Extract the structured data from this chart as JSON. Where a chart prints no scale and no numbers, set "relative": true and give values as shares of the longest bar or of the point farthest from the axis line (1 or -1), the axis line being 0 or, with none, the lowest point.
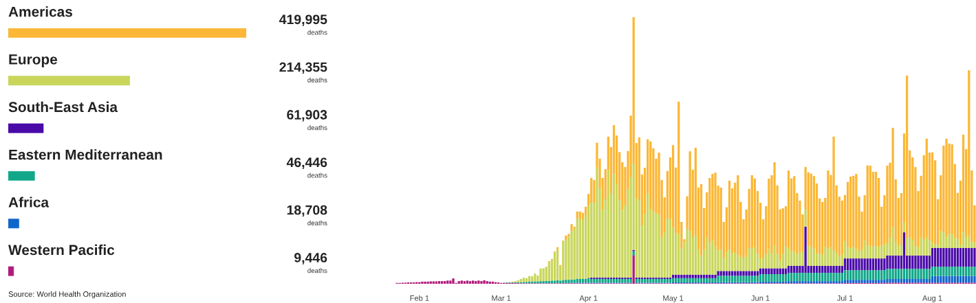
{
  "chart_data": [
    {
      "type": "bar",
      "orientation": "horizontal",
      "tick_labels": "y",
      "categories": [
        "Americas",
        "Europe",
        "South-East Asia",
        "Eastern Mediterranean",
        "Africa",
        "Western Pacific"
      ],
      "values": [
        419995,
        214355,
        61903,
        46446,
        18708,
        9446
      ],
      "colors": [
        "#fbb735",
        "#c9d65b",
        "#4a0aa8",
        "#11a889",
        "#1166cc",
        "#b01a7c"
      ],
      "value_labels": [
        "419,995\ndeaths",
        "214,355\ndeaths",
        "61,903\ndeaths",
        "46,446\ndeaths",
        "18,708\ndeaths",
        "9,446\ndeaths"
      ],
      "annotations": [
        "Source: World Health Organization"
      ]
    },
    {
      "type": "bar",
      "stacked": true,
      "relative": true,
      "tick_labels": "x",
      "categories": [
        null,
        null,
        null,
        null,
        null,
        null,
        null,
        null,
        "Feb 1",
        null,
        null,
        null,
        null,
        null,
        null,
        null,
        null,
        null,
        null,
        null,
        null,
        null,
        null,
        null,
        null,
        null,
        null,
        null,
        null,
        null,
        null,
        null,
        null,
        null,
        null,
        null,
        null,
        "Mar 1",
        null,
        null,
        null,
        null,
        null,
        null,
        null,
        null,
        null,
        null,
        null,
        null,
        null,
        null,
        null,
        null,
        null,
        null,
        null,
        null,
        null,
        null,
        null,
        null,
        null,
        null,
        null,
        null,
        null,
        null,
        "Apr 1",
        null,
        null,
        null,
        null,
        null,
        null,
        null,
        null,
        null,
        null,
        null,
        null,
        null,
        null,
        null,
        null,
        null,
        null,
        null,
        null,
        null,
        null,
        null,
        null,
        null,
        null,
        null,
        null,
        null,
        "May 1",
        null,
        null,
        null,
        null,
        null,
        null,
        null,
        null,
        null,
        null,
        null,
        null,
        null,
        null,
        null,
        null,
        null,
        null,
        null,
        null,
        null,
        null,
        null,
        null,
        null,
        null,
        null,
        null,
        null,
        null,
        "Jun 1",
        null,
        null,
        null,
        null,
        null,
        null,
        null,
        null,
        null,
        null,
        null,
        null,
        null,
        null,
        null,
        null,
        null,
        null,
        null,
        null,
        null,
        null,
        null,
        null,
        null,
        null,
        null,
        null,
        null,
        "Jul 1",
        null,
        null,
        null,
        null,
        null,
        null,
        null,
        null,
        null,
        null,
        null,
        null,
        null,
        null,
        null,
        null,
        null,
        null,
        null,
        null,
        null,
        null,
        null,
        null,
        null,
        null,
        null,
        null,
        null,
        null,
        "Aug 1",
        null,
        null,
        null,
        null,
        null,
        null,
        null,
        null,
        null,
        null,
        null,
        null,
        null,
        null,
        null
      ],
      "series": [
        {
          "color": "#b01a7c",
          "values": [
            0.003,
            0.003,
            0.004,
            0.004,
            0.005,
            0.005,
            0.005,
            0.006,
            0.006,
            0.008,
            0.008,
            0.008,
            0.009,
            0.009,
            0.009,
            0.01,
            0.01,
            0.01,
            0.012,
            0.012,
            0.02,
            0.003,
            0.01,
            0.012,
            0.01,
            0.012,
            0.01,
            0.012,
            0.01,
            0.012,
            0.01,
            0.013,
            0.01,
            0.008,
            0.008,
            0.006,
            0.005,
            0.003,
            0.003,
            0.003,
            0.003,
            0.003,
            0.003,
            0.003,
            0.002,
            0.002,
            0.002,
            0.002,
            0.002,
            0.002,
            0.002,
            0.002,
            0.002,
            0.002,
            0.002,
            0.002,
            0.002,
            0.002,
            0.002,
            0.002,
            0.002,
            0.002,
            0.002,
            0.002,
            0.002,
            0.002,
            0.002,
            0.002,
            0.002,
            0.002,
            0.002,
            0.002,
            0.002,
            0.002,
            0.002,
            0.002,
            0.002,
            0.002,
            0.002,
            0.002,
            0.002,
            0.002,
            0.002,
            0.002,
            0.106,
            0.002,
            0.002,
            0.002,
            0.002,
            0.002,
            0.002,
            0.002,
            0.002,
            0.002,
            0.002,
            0.002,
            0.002,
            0.002,
            0.002,
            0.002,
            0.002,
            0.002,
            0.002,
            0.002,
            0.002,
            0.002,
            0.002,
            0.002,
            0.002,
            0.002,
            0.002,
            0.002,
            0.002,
            0.002,
            0.002,
            0.002,
            0.002,
            0.002,
            0.002,
            0.002,
            0.002,
            0.002,
            0.002,
            0.002,
            0.002,
            0.002,
            0.002,
            0.002,
            0.002,
            0.002,
            0.002,
            0.002,
            0.002,
            0.002,
            0.002,
            0.002,
            0.002,
            0.002,
            0.002,
            0.002,
            0.002,
            0.002,
            0.002,
            0.002,
            0.002,
            0.002,
            0.002,
            0.002,
            0.002,
            0.002,
            0.002,
            0.002,
            0.002,
            0.002,
            0.002,
            0.002,
            0.002,
            0.002,
            0.002,
            0.003,
            0.003,
            0.003,
            0.003,
            0.003,
            0.003,
            0.003,
            0.003,
            0.003,
            0.003,
            0.003,
            0.003,
            0.003,
            0.003,
            0.003,
            0.004,
            0.004,
            0.004,
            0.004,
            0.004,
            0.004,
            0.004,
            0.004,
            0.004,
            0.004,
            0.004,
            0.004,
            0.004,
            0.004,
            0.004,
            0.004,
            0.004,
            0.004,
            0.004,
            0.004,
            0.004,
            0.004,
            0.004,
            0.004,
            0.004,
            0.004,
            0.004,
            0.004,
            0.004,
            0.004,
            0.004,
            0.004
          ]
        },
        {
          "color": "#1166cc",
          "values": [
            0,
            0,
            0,
            0,
            0,
            0,
            0,
            0,
            0,
            0,
            0,
            0,
            0,
            0,
            0,
            0,
            0,
            0,
            0,
            0,
            0,
            0,
            0,
            0,
            0,
            0,
            0,
            0,
            0,
            0,
            0,
            0,
            0,
            0,
            0,
            0,
            0,
            0,
            0,
            0,
            0,
            0,
            0,
            0,
            0,
            0,
            0,
            0,
            0,
            0,
            0,
            0,
            0,
            0,
            0,
            0,
            0,
            0,
            0,
            0.001,
            0.001,
            0.001,
            0.001,
            0.001,
            0.002,
            0.002,
            0.002,
            0.002,
            0.002,
            0.002,
            0.002,
            0.002,
            0.002,
            0.002,
            0.002,
            0.002,
            0.002,
            0.002,
            0.002,
            0.002,
            0.002,
            0.002,
            0.002,
            0.002,
            0.002,
            0.002,
            0.002,
            0.002,
            0.002,
            0.002,
            0.002,
            0.002,
            0.002,
            0.002,
            0.002,
            0.002,
            0.002,
            0.002,
            0.003,
            0.003,
            0.003,
            0.003,
            0.003,
            0.003,
            0.003,
            0.003,
            0.003,
            0.003,
            0.003,
            0.003,
            0.003,
            0.003,
            0.003,
            0.003,
            0.004,
            0.004,
            0.004,
            0.004,
            0.004,
            0.004,
            0.004,
            0.004,
            0.004,
            0.004,
            0.004,
            0.004,
            0.004,
            0.004,
            0.004,
            0.006,
            0.006,
            0.006,
            0.006,
            0.006,
            0.006,
            0.006,
            0.006,
            0.006,
            0.006,
            0.008,
            0.008,
            0.008,
            0.008,
            0.008,
            0.008,
            0.008,
            0.008,
            0.008,
            0.008,
            0.008,
            0.008,
            0.008,
            0.008,
            0.008,
            0.008,
            0.008,
            0.008,
            0.008,
            0.008,
            0.012,
            0.012,
            0.012,
            0.012,
            0.012,
            0.012,
            0.012,
            0.012,
            0.012,
            0.012,
            0.012,
            0.012,
            0.012,
            0.012,
            0.012,
            0.014,
            0.014,
            0.014,
            0.014,
            0.014,
            0.014,
            0.014,
            0.014,
            0.014,
            0.014,
            0.014,
            0.014,
            0.014,
            0.014,
            0.014,
            0.014,
            0.025,
            0.025,
            0.025,
            0.025,
            0.025,
            0.025,
            0.025,
            0.025,
            0.025,
            0.025,
            0.025,
            0.025,
            0.025,
            0.025,
            0.025,
            0.025
          ]
        },
        {
          "color": "#11a889",
          "values": [
            0,
            0,
            0,
            0,
            0,
            0,
            0,
            0,
            0,
            0,
            0,
            0,
            0,
            0,
            0,
            0,
            0,
            0,
            0,
            0,
            0,
            0,
            0,
            0,
            0,
            0,
            0,
            0,
            0,
            0,
            0,
            0,
            0,
            0,
            0,
            0,
            0,
            0,
            0.001,
            0.002,
            0.002,
            0.002,
            0.003,
            0.003,
            0.004,
            0.005,
            0.005,
            0.006,
            0.006,
            0.007,
            0.007,
            0.008,
            0.008,
            0.009,
            0.009,
            0.01,
            0.01,
            0.011,
            0.01,
            0.011,
            0.012,
            0.012,
            0.013,
            0.013,
            0.014,
            0.014,
            0.014,
            0.015,
            0.016,
            0.014,
            0.014,
            0.014,
            0.014,
            0.014,
            0.014,
            0.014,
            0.014,
            0.014,
            0.014,
            0.014,
            0.014,
            0.014,
            0.014,
            0.014,
            0.014,
            0.014,
            0.014,
            0.014,
            0.014,
            0.014,
            0.014,
            0.014,
            0.014,
            0.014,
            0.014,
            0.014,
            0.014,
            0.014,
            0.016,
            0.016,
            0.016,
            0.016,
            0.016,
            0.016,
            0.016,
            0.016,
            0.016,
            0.016,
            0.016,
            0.016,
            0.016,
            0.016,
            0.016,
            0.016,
            0.024,
            0.024,
            0.024,
            0.024,
            0.024,
            0.024,
            0.024,
            0.024,
            0.024,
            0.024,
            0.024,
            0.024,
            0.024,
            0.024,
            0.024,
            0.028,
            0.028,
            0.028,
            0.028,
            0.028,
            0.028,
            0.028,
            0.028,
            0.028,
            0.028,
            0.031,
            0.031,
            0.031,
            0.031,
            0.031,
            0.031,
            0.031,
            0.031,
            0.031,
            0.031,
            0.031,
            0.031,
            0.031,
            0.031,
            0.031,
            0.031,
            0.031,
            0.031,
            0.031,
            0.031,
            0.036,
            0.036,
            0.036,
            0.036,
            0.036,
            0.036,
            0.036,
            0.036,
            0.036,
            0.036,
            0.036,
            0.036,
            0.036,
            0.036,
            0.036,
            0.038,
            0.038,
            0.038,
            0.038,
            0.038,
            0.038,
            0.038,
            0.038,
            0.038,
            0.038,
            0.038,
            0.038,
            0.038,
            0.038,
            0.038,
            0.038,
            0.035,
            0.035,
            0.035,
            0.035,
            0.035,
            0.035,
            0.035,
            0.035,
            0.035,
            0.035,
            0.035,
            0.035,
            0.035,
            0.035,
            0.035,
            0.035
          ]
        },
        {
          "color": "#4a0aa8",
          "values": [
            0,
            0,
            0,
            0,
            0,
            0,
            0,
            0,
            0,
            0,
            0,
            0,
            0,
            0,
            0,
            0,
            0,
            0,
            0,
            0,
            0,
            0,
            0,
            0,
            0,
            0,
            0,
            0,
            0,
            0,
            0,
            0,
            0,
            0,
            0,
            0,
            0,
            0,
            0,
            0,
            0,
            0,
            0,
            0,
            0,
            0,
            0,
            0,
            0,
            0,
            0,
            0,
            0,
            0,
            0,
            0,
            0,
            0,
            0,
            0,
            0,
            0,
            0,
            0,
            0,
            0,
            0,
            0,
            0.002,
            0.005,
            0.005,
            0.005,
            0.005,
            0.005,
            0.005,
            0.005,
            0.005,
            0.005,
            0.005,
            0.005,
            0.005,
            0.005,
            0.005,
            0.005,
            0.005,
            0.005,
            0.005,
            0.005,
            0.005,
            0.005,
            0.005,
            0.005,
            0.005,
            0.005,
            0.005,
            0.005,
            0.005,
            0.005,
            0.013,
            0.013,
            0.013,
            0.013,
            0.013,
            0.013,
            0.013,
            0.013,
            0.013,
            0.013,
            0.013,
            0.013,
            0.013,
            0.013,
            0.013,
            0.013,
            0.018,
            0.018,
            0.018,
            0.018,
            0.018,
            0.018,
            0.018,
            0.018,
            0.018,
            0.018,
            0.018,
            0.018,
            0.018,
            0.018,
            0.018,
            0.022,
            0.022,
            0.022,
            0.022,
            0.022,
            0.022,
            0.022,
            0.022,
            0.022,
            0.022,
            0.026,
            0.026,
            0.026,
            0.026,
            0.026,
            0.026,
            0.173,
            0.026,
            0.026,
            0.026,
            0.026,
            0.026,
            0.026,
            0.026,
            0.026,
            0.026,
            0.026,
            0.026,
            0.026,
            0.026,
            0.044,
            0.044,
            0.044,
            0.044,
            0.044,
            0.044,
            0.044,
            0.044,
            0.044,
            0.044,
            0.044,
            0.044,
            0.044,
            0.044,
            0.044,
            0.05,
            0.05,
            0.05,
            0.05,
            0.05,
            0.05,
            0.137,
            0.05,
            0.05,
            0.05,
            0.05,
            0.05,
            0.05,
            0.05,
            0.05,
            0.05,
            0.07,
            0.07,
            0.07,
            0.07,
            0.07,
            0.07,
            0.07,
            0.07,
            0.07,
            0.07,
            0.07,
            0.07,
            0.07,
            0.07,
            0.07,
            0.07
          ]
        },
        {
          "color": "#c9d65b",
          "values": [
            0,
            0,
            0,
            0,
            0,
            0,
            0,
            0,
            0,
            0,
            0,
            0,
            0,
            0,
            0,
            0,
            0,
            0,
            0,
            0,
            0,
            0,
            0,
            0,
            0,
            0,
            0,
            0,
            0,
            0,
            0,
            0,
            0,
            0,
            0,
            0,
            0,
            0,
            0,
            0,
            0.001,
            0.003,
            0.004,
            0.007,
            0.012,
            0.016,
            0.014,
            0.021,
            0.02,
            0.029,
            0.022,
            0.047,
            0.048,
            0.053,
            0.07,
            0.078,
            0.105,
            0.117,
            0.053,
            0.146,
            0.15,
            0.163,
            0.182,
            0.193,
            0.227,
            0.227,
            0.222,
            0.239,
            0.271,
            0.281,
            0.281,
            0.413,
            0.335,
            0.255,
            0.294,
            0.405,
            0.315,
            0.389,
            0.353,
            0.291,
            0.255,
            0.271,
            0.333,
            0.376,
            0.324,
            0.299,
            0.291,
            0.196,
            0.237,
            0.315,
            0.258,
            0.248,
            0.242,
            0.237,
            0.152,
            0.17,
            0.222,
            0.219,
            0.177,
            0.157,
            0.152,
            0.097,
            0.123,
            0.175,
            0.164,
            0.141,
            0.149,
            0.095,
            0.072,
            0.095,
            0.141,
            0.121,
            0.131,
            0.105,
            0.078,
            0.081,
            0.05,
            0.071,
            0.081,
            0.068,
            0.068,
            0.06,
            0.053,
            0.05,
            0.058,
            0.086,
            0.086,
            0.089,
            0.065,
            0.035,
            0.04,
            0.053,
            0.073,
            0.055,
            0.086,
            0.053,
            0.03,
            0.055,
            0.081,
            0.067,
            0.057,
            0.054,
            0.044,
            0.052,
            0.054,
            0.064,
            0.075,
            0.07,
            0.064,
            0.049,
            0.044,
            0.044,
            0.072,
            0.064,
            0.07,
            0.057,
            0.049,
            0.036,
            0.044,
            0.065,
            0.042,
            0.039,
            0.042,
            0.036,
            0.026,
            0.034,
            0.067,
            0.047,
            0.049,
            0.044,
            0.047,
            0.044,
            0.047,
            0.054,
            0.046,
            0.067,
            0.108,
            0.051,
            0.036,
            0.041,
            0.039,
            0.067,
            0.067,
            0.059,
            0.036,
            0.031,
            0.067,
            0.059,
            0.069,
            0.059,
            0.021,
            0.015,
            0.013,
            0.064,
            0.059,
            0.041,
            0.052,
            0.054,
            0.039,
            0.034,
            0.013,
            0.059,
            0.039,
            0.046,
            0.023,
            0.021
          ]
        },
        {
          "color": "#fbb735",
          "values": [
            0,
            0,
            0,
            0,
            0,
            0,
            0,
            0,
            0,
            0,
            0,
            0,
            0,
            0,
            0,
            0,
            0,
            0,
            0,
            0,
            0,
            0,
            0,
            0,
            0,
            0,
            0,
            0,
            0,
            0,
            0,
            0,
            0,
            0,
            0,
            0,
            0,
            0,
            0,
            0,
            0,
            0,
            0,
            0,
            0,
            0,
            0,
            0,
            0,
            0,
            0,
            0,
            0,
            0,
            0.004,
            0.003,
            0.004,
            0.007,
            0.005,
            0.002,
            0.016,
            0.009,
            0.026,
            0.005,
            0.026,
            0.026,
            0.026,
            0.031,
            0.044,
            0.093,
            0.085,
            0.093,
            0.111,
            0.119,
            0.113,
            0.124,
            0.175,
            0.183,
            0.18,
            0.18,
            0.178,
            0.144,
            0.142,
            0.232,
            0.549,
            0.206,
            0.235,
            0.191,
            0.175,
            0.204,
            0.253,
            0.237,
            0.204,
            0.232,
            0.214,
            0.131,
            0.178,
            0.232,
            0.309,
            0.245,
            0.497,
            0.101,
            0.01,
            0.119,
            0.299,
            0.253,
            0.327,
            0.232,
            0.268,
            0.155,
            0.168,
            0.242,
            0.247,
            0.278,
            0.242,
            0.232,
            0.134,
            0.168,
            0.258,
            0.242,
            0.263,
            0.299,
            0.206,
            0.144,
            0.173,
            0.222,
            0.273,
            0.258,
            0.235,
            0.211,
            0.144,
            0.18,
            0.263,
            0.294,
            0.312,
            0.258,
            0.191,
            0.17,
            0.152,
            0.291,
            0.271,
            0.283,
            0.229,
            0.193,
            0.139,
            0.16,
            0.276,
            0.276,
            0.273,
            0.26,
            0.209,
            0.196,
            0.183,
            0.294,
            0.271,
            0.428,
            0.253,
            0.224,
            0.201,
            0.173,
            0.245,
            0.268,
            0.268,
            0.281,
            0.206,
            0.142,
            0.17,
            0.302,
            0.299,
            0.281,
            0.278,
            0.258,
            0.147,
            0.183,
            0.291,
            0.281,
            0.371,
            0.235,
            0.18,
            0.193,
            0.332,
            0.608,
            0.327,
            0.309,
            0.296,
            0.211,
            0.232,
            0.317,
            0.369,
            0.327,
            0.338,
            0.314,
            0.17,
            0.209,
            0.325,
            0.369,
            0.34,
            0.335,
            0.276,
            0.173,
            0.24,
            0.366,
            0.332,
            0.621,
            0.268,
            0.139
          ]
        }
      ]
    }
  ]
}
